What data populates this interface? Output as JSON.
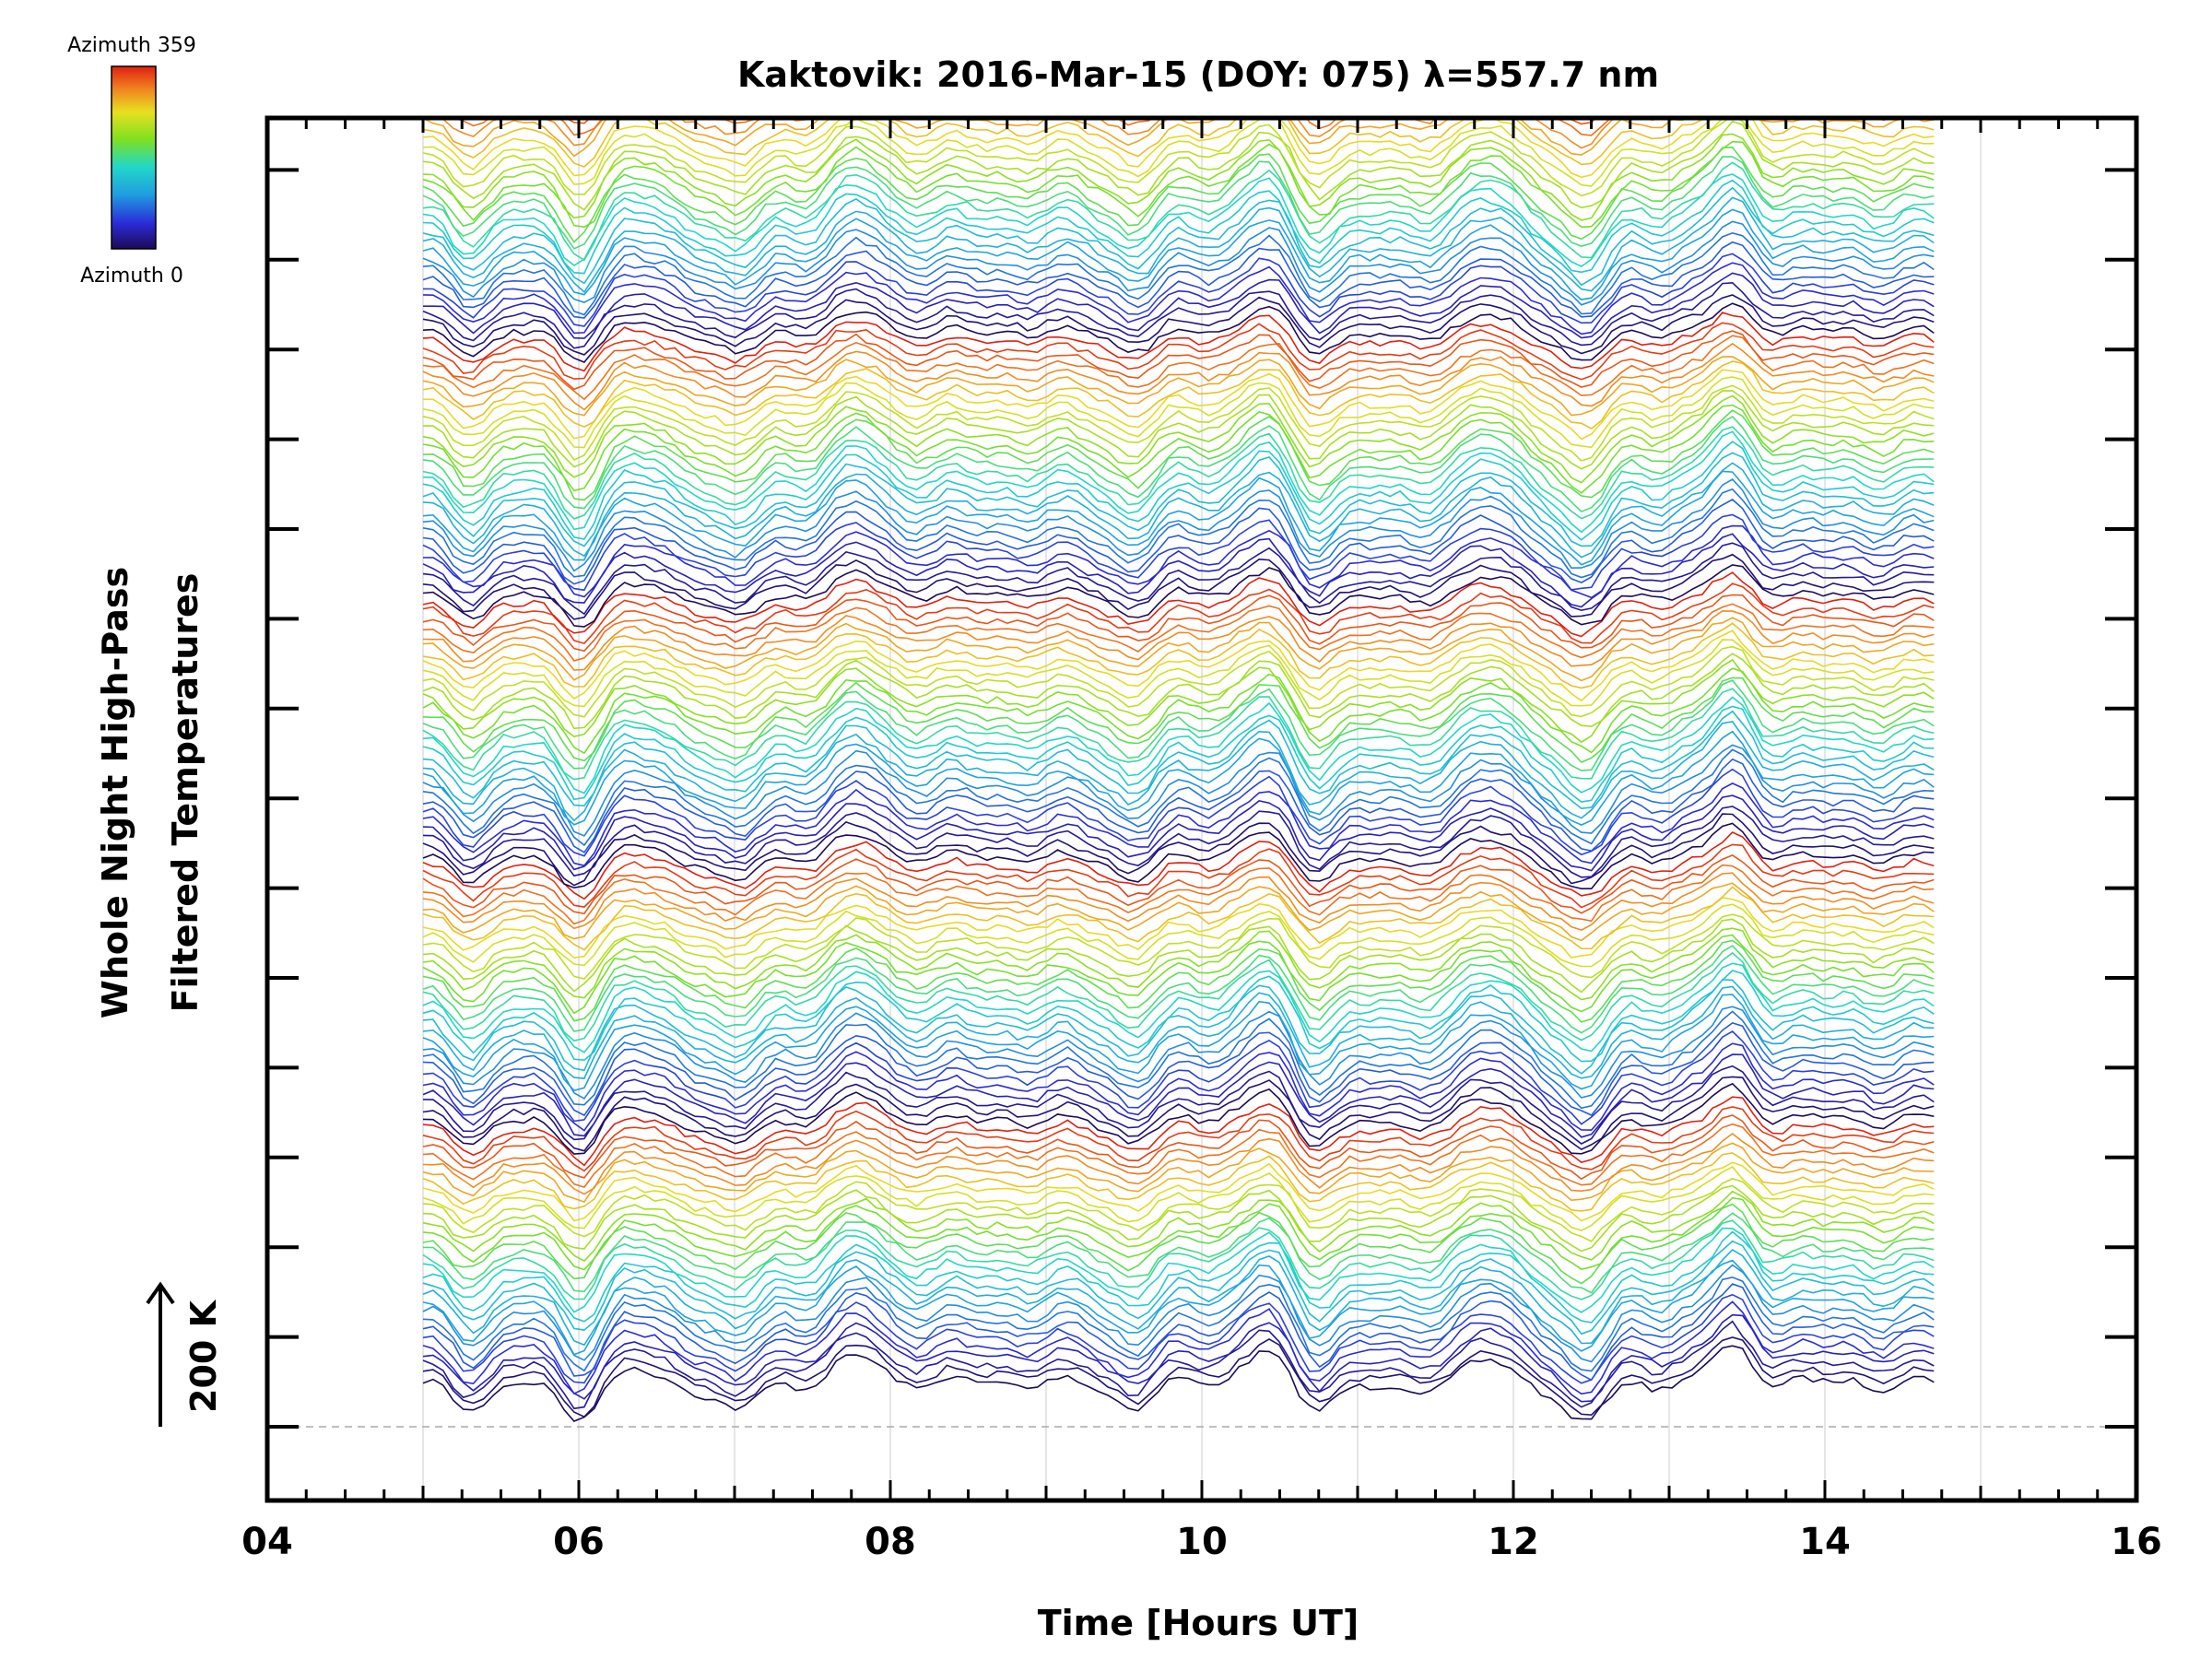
{
  "chart_data": {
    "type": "line",
    "title": "Kaktovik: 2016-Mar-15 (DOY: 075) λ=557.7 nm",
    "xlabel": "Time [Hours UT]",
    "ylabel_line1": "Whole Night High-Pass",
    "ylabel_line2": "Filtered Temperatures",
    "xlim": [
      4,
      16
    ],
    "x_ticks": [
      "04",
      "06",
      "08",
      "10",
      "12",
      "14",
      "16"
    ],
    "x_tick_values": [
      4,
      6,
      8,
      10,
      12,
      14,
      16
    ],
    "time_range_hours": [
      5.0,
      14.7
    ],
    "scale_bar_label": "200 K",
    "scale_bar_kelvin": 200,
    "legend": {
      "top_label": "Azimuth 359",
      "bottom_label": "Azimuth 0",
      "azimuth_range": [
        0,
        359
      ]
    },
    "colors": {
      "stack_guide": "#aaaaaa",
      "vertical_grid": "#dddddd",
      "axis": "#000000"
    },
    "stack_description": "Stacked high-pass filtered temperature traces, one per azimuth sector, colour-coded by azimuth (rainbow, blue=0 to red=359)",
    "series_count": 150,
    "feature_times_hours": [
      5.3,
      6.0,
      6.3,
      7.0,
      7.8,
      9.55,
      10.4,
      10.7,
      11.3,
      11.8,
      12.45,
      13.4
    ]
  }
}
